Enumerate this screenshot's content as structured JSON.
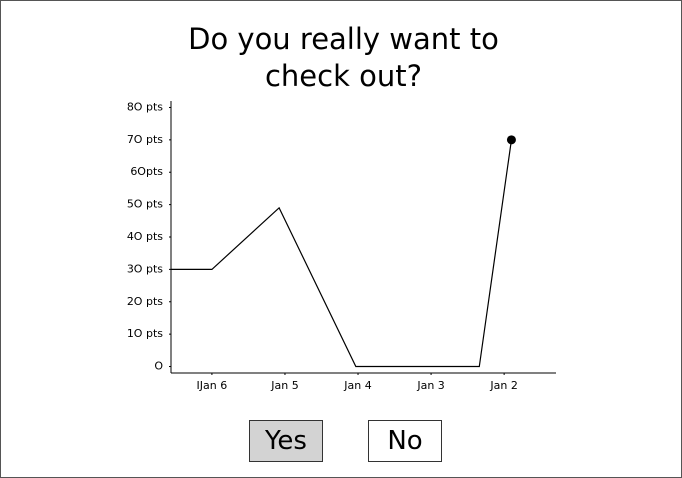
{
  "title": "Do you really want to check out?",
  "chart_data": {
    "type": "line",
    "xlim": [
      -0.56,
      4.71
    ],
    "xticks": [
      {
        "value": 0,
        "label": "IJan 6"
      },
      {
        "value": 1,
        "label": "Jan 5"
      },
      {
        "value": 2,
        "label": "Jan 4"
      },
      {
        "value": 3,
        "label": "Jan 3"
      },
      {
        "value": 4,
        "label": "Jan 2"
      }
    ],
    "ylim": [
      -2,
      82
    ],
    "yticks": [
      {
        "value": 0,
        "label": "O"
      },
      {
        "value": 10,
        "label": "1O pts"
      },
      {
        "value": 20,
        "label": "2O pts"
      },
      {
        "value": 30,
        "label": "3O pts"
      },
      {
        "value": 40,
        "label": "4O pts"
      },
      {
        "value": 50,
        "label": "5O pts"
      },
      {
        "value": 60,
        "label": "6Opts"
      },
      {
        "value": 70,
        "label": "7O pts"
      },
      {
        "value": 80,
        "label": "8O pts"
      }
    ],
    "series": [
      {
        "color": "#000000",
        "x": [
          -0.56,
          0,
          0.92,
          1.97,
          3.66,
          4.1
        ],
        "values": [
          30,
          30,
          49,
          0,
          0,
          70
        ]
      }
    ]
  },
  "buttons": [
    "Yes",
    "No"
  ]
}
